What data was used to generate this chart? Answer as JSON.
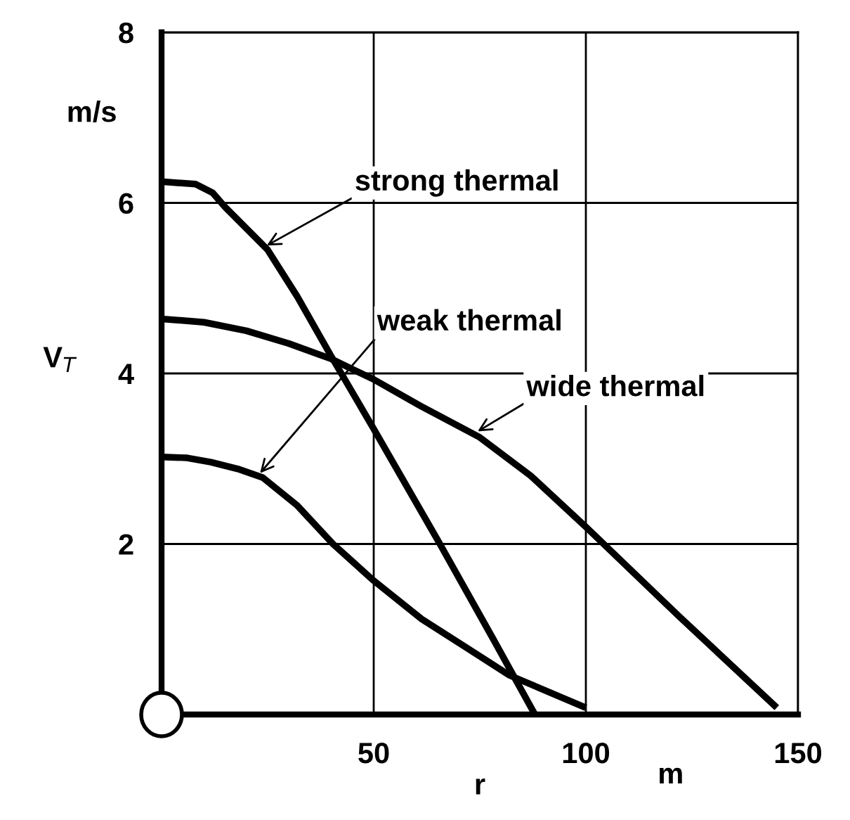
{
  "chart_data": {
    "type": "line",
    "xlabel": "r",
    "ylabel": "V$_{T}$",
    "xlim": [
      0,
      150
    ],
    "ylim": [
      0,
      8
    ],
    "xticks": [
      {
        "value": 0,
        "label": null
      },
      50,
      100,
      150
    ],
    "yticks": [
      {
        "value": 0,
        "label": null
      },
      2,
      4,
      6,
      8
    ],
    "grid": true,
    "marker": "none",
    "line_style": "solid",
    "series": [
      {
        "color": "#000000",
        "x": [
          0,
          8,
          12,
          15,
          20,
          25,
          32,
          40,
          50,
          65.6,
          78,
          88
        ],
        "values": [
          6.25,
          6.22,
          6.12,
          5.95,
          5.7,
          5.45,
          4.9,
          4.2,
          3.35,
          2.0,
          0.9,
          0.0
        ]
      },
      {
        "color": "#000000",
        "x": [
          0,
          10,
          20,
          30,
          40,
          50,
          61,
          75,
          87,
          100,
          122,
          145
        ],
        "values": [
          4.64,
          4.6,
          4.5,
          4.35,
          4.17,
          3.93,
          3.62,
          3.25,
          2.8,
          2.2,
          1.15,
          0.08
        ]
      },
      {
        "color": "#000000",
        "x": [
          0,
          6,
          11.6,
          18,
          23.8,
          32,
          40.4,
          50,
          61.3,
          72,
          82,
          100
        ],
        "values": [
          3.02,
          3.01,
          2.96,
          2.88,
          2.78,
          2.45,
          2.0,
          1.57,
          1.12,
          0.78,
          0.46,
          0.08
        ]
      }
    ],
    "annotations": [
      "m/s",
      "m",
      {
        "text": "strong thermal",
        "x": 24.8,
        "y": 5.5
      },
      {
        "text": "weak thermal",
        "x": 23.2,
        "y": 2.83
      },
      {
        "text": "wide thermal",
        "x": 74.5,
        "y": 3.32
      }
    ]
  }
}
